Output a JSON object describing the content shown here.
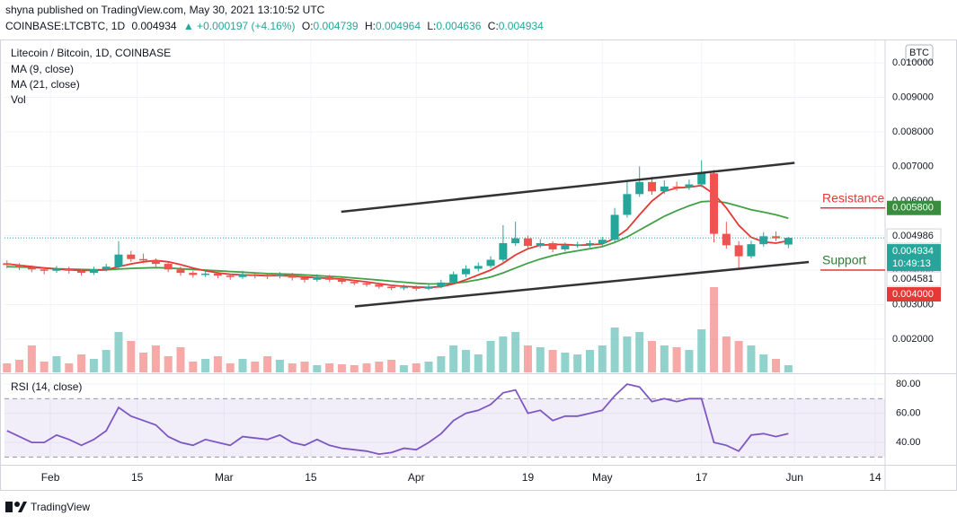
{
  "header": {
    "publisher": "shyna published on TradingView.com, May 30, 2021 13:10:52 UTC",
    "symbol": "COINBASE:LTCBTC, 1D",
    "last": "0.004934",
    "change": "▲ +0.000197 (+4.16%)",
    "o_key": "O:",
    "o": "0.004739",
    "h_key": "H:",
    "h": "0.004964",
    "l_key": "L:",
    "l": "0.004636",
    "c_key": "C:",
    "c": "0.004934",
    "legend_title": "Litecoin / Bitcoin, 1D, COINBASE",
    "ma9": "MA (9, close)",
    "ma21": "MA (21, close)",
    "vol": "Vol",
    "rsi": "RSI (14, close)",
    "currency": "BTC",
    "clock": "10:49:13",
    "brand": "TradingView"
  },
  "chart_data": {
    "type": "candlestick",
    "x": [
      0,
      2,
      4,
      6,
      8,
      10,
      12,
      14,
      16,
      18,
      20,
      22,
      24,
      26,
      28,
      30,
      32,
      34,
      36,
      38,
      40,
      42,
      44,
      46,
      48,
      50,
      52,
      54,
      56,
      58,
      60,
      62,
      64,
      66,
      68,
      70,
      72,
      74,
      76,
      78,
      80,
      82,
      84,
      86,
      88,
      90,
      92,
      94,
      96,
      98,
      100,
      102,
      104,
      106,
      108,
      110,
      112,
      114,
      116,
      118,
      120,
      122,
      124,
      126
    ],
    "ohlc": [
      [
        0.0042,
        0.00428,
        0.00405,
        0.00415
      ],
      [
        0.00415,
        0.0042,
        0.004,
        0.00408
      ],
      [
        0.00408,
        0.00414,
        0.00394,
        0.00402
      ],
      [
        0.00402,
        0.00408,
        0.00388,
        0.00398
      ],
      [
        0.00398,
        0.00412,
        0.00392,
        0.00404
      ],
      [
        0.00404,
        0.0041,
        0.0039,
        0.00398
      ],
      [
        0.00398,
        0.00404,
        0.00384,
        0.00392
      ],
      [
        0.00392,
        0.0041,
        0.00386,
        0.00402
      ],
      [
        0.00402,
        0.00418,
        0.00396,
        0.0041
      ],
      [
        0.0041,
        0.00484,
        0.00404,
        0.00445
      ],
      [
        0.00445,
        0.00456,
        0.00424,
        0.00432
      ],
      [
        0.00432,
        0.00448,
        0.0042,
        0.00428
      ],
      [
        0.00428,
        0.00434,
        0.0041,
        0.00418
      ],
      [
        0.00418,
        0.00424,
        0.00394,
        0.00402
      ],
      [
        0.00402,
        0.0041,
        0.00384,
        0.00392
      ],
      [
        0.00392,
        0.00398,
        0.00378,
        0.00386
      ],
      [
        0.00386,
        0.00398,
        0.0038,
        0.0039
      ],
      [
        0.0039,
        0.00396,
        0.00376,
        0.00384
      ],
      [
        0.00384,
        0.0039,
        0.00372,
        0.0038
      ],
      [
        0.0038,
        0.00398,
        0.00374,
        0.00388
      ],
      [
        0.00388,
        0.00394,
        0.00376,
        0.00384
      ],
      [
        0.00384,
        0.0039,
        0.00374,
        0.00382
      ],
      [
        0.00382,
        0.00394,
        0.00376,
        0.00386
      ],
      [
        0.00386,
        0.00392,
        0.0037,
        0.00378
      ],
      [
        0.00378,
        0.00384,
        0.00364,
        0.00372
      ],
      [
        0.00372,
        0.00388,
        0.00366,
        0.0038
      ],
      [
        0.0038,
        0.00386,
        0.00366,
        0.00372
      ],
      [
        0.00372,
        0.00378,
        0.0036,
        0.00366
      ],
      [
        0.00366,
        0.00372,
        0.00356,
        0.00362
      ],
      [
        0.00362,
        0.00368,
        0.00352,
        0.00358
      ],
      [
        0.00358,
        0.00364,
        0.00346,
        0.00352
      ],
      [
        0.00352,
        0.00358,
        0.00342,
        0.00348
      ],
      [
        0.00348,
        0.00358,
        0.00342,
        0.0035
      ],
      [
        0.0035,
        0.00356,
        0.0034,
        0.00346
      ],
      [
        0.00346,
        0.0036,
        0.00342,
        0.00352
      ],
      [
        0.00352,
        0.00372,
        0.00348,
        0.00364
      ],
      [
        0.00364,
        0.00396,
        0.0036,
        0.00388
      ],
      [
        0.00388,
        0.00414,
        0.0038,
        0.00404
      ],
      [
        0.00404,
        0.00422,
        0.00396,
        0.00412
      ],
      [
        0.00412,
        0.0044,
        0.00406,
        0.0043
      ],
      [
        0.0043,
        0.0053,
        0.00424,
        0.00478
      ],
      [
        0.00478,
        0.0054,
        0.0047,
        0.00492
      ],
      [
        0.00492,
        0.005,
        0.00462,
        0.0047
      ],
      [
        0.0047,
        0.0049,
        0.00464,
        0.00478
      ],
      [
        0.00478,
        0.00484,
        0.00452,
        0.0046
      ],
      [
        0.0046,
        0.0048,
        0.00454,
        0.00472
      ],
      [
        0.00472,
        0.00482,
        0.00464,
        0.00474
      ],
      [
        0.00474,
        0.00486,
        0.00466,
        0.00478
      ],
      [
        0.00478,
        0.00496,
        0.0047,
        0.00488
      ],
      [
        0.00488,
        0.0058,
        0.00482,
        0.0056
      ],
      [
        0.0056,
        0.0066,
        0.00552,
        0.0062
      ],
      [
        0.0062,
        0.007,
        0.00612,
        0.00655
      ],
      [
        0.00655,
        0.0067,
        0.00618,
        0.00628
      ],
      [
        0.00628,
        0.0066,
        0.0062,
        0.00642
      ],
      [
        0.00642,
        0.00656,
        0.0063,
        0.0064
      ],
      [
        0.0064,
        0.00662,
        0.00632,
        0.00648
      ],
      [
        0.00648,
        0.00718,
        0.0064,
        0.0068
      ],
      [
        0.0068,
        0.0069,
        0.0048,
        0.00505
      ],
      [
        0.00505,
        0.0054,
        0.00462,
        0.00472
      ],
      [
        0.00472,
        0.00484,
        0.004,
        0.0044
      ],
      [
        0.0044,
        0.00485,
        0.00434,
        0.00475
      ],
      [
        0.00475,
        0.0051,
        0.00468,
        0.00498
      ],
      [
        0.00498,
        0.00512,
        0.00484,
        0.00492
      ],
      [
        0.004739,
        0.004964,
        0.004636,
        0.004934
      ]
    ],
    "ma9": [
      0.00418,
      0.00414,
      0.0041,
      0.00406,
      0.00403,
      0.00401,
      0.00399,
      0.00399,
      0.00401,
      0.0041,
      0.00418,
      0.00424,
      0.00428,
      0.00424,
      0.00416,
      0.00406,
      0.00398,
      0.00392,
      0.00388,
      0.00386,
      0.00385,
      0.00384,
      0.00384,
      0.00383,
      0.0038,
      0.00378,
      0.00376,
      0.00374,
      0.0037,
      0.00366,
      0.00361,
      0.00356,
      0.00353,
      0.00351,
      0.0035,
      0.00352,
      0.0036,
      0.00372,
      0.00386,
      0.004,
      0.0042,
      0.00444,
      0.00462,
      0.00472,
      0.00474,
      0.00474,
      0.00472,
      0.00473,
      0.00476,
      0.00492,
      0.00518,
      0.0056,
      0.006,
      0.00628,
      0.00638,
      0.0064,
      0.00645,
      0.0062,
      0.0058,
      0.0053,
      0.00495,
      0.00482,
      0.00478,
      0.00485
    ],
    "ma21": [
      0.0041,
      0.00409,
      0.00408,
      0.00406,
      0.00404,
      0.00403,
      0.00402,
      0.00401,
      0.00401,
      0.00403,
      0.00405,
      0.00406,
      0.00407,
      0.00406,
      0.00404,
      0.00402,
      0.004,
      0.00398,
      0.00396,
      0.00394,
      0.00392,
      0.0039,
      0.00389,
      0.00388,
      0.00386,
      0.00384,
      0.00382,
      0.0038,
      0.00377,
      0.00374,
      0.00371,
      0.00368,
      0.00365,
      0.00362,
      0.0036,
      0.0036,
      0.00362,
      0.00366,
      0.00372,
      0.0038,
      0.00392,
      0.00406,
      0.0042,
      0.00432,
      0.00442,
      0.0045,
      0.00456,
      0.00462,
      0.00468,
      0.0048,
      0.00496,
      0.00516,
      0.00536,
      0.00556,
      0.00572,
      0.00586,
      0.00598,
      0.006,
      0.00595,
      0.00585,
      0.00575,
      0.00568,
      0.0056,
      0.0055
    ],
    "ma9_color": "#e53935",
    "ma21_color": "#43a047",
    "up_color": "#26a69a",
    "down_color": "#ef5350",
    "volume": [
      10,
      14,
      30,
      12,
      18,
      10,
      20,
      15,
      25,
      45,
      35,
      22,
      30,
      18,
      28,
      12,
      15,
      18,
      10,
      15,
      12,
      18,
      14,
      10,
      12,
      8,
      10,
      9,
      8,
      10,
      12,
      14,
      8,
      10,
      12,
      18,
      30,
      25,
      20,
      35,
      40,
      45,
      30,
      28,
      25,
      22,
      20,
      25,
      30,
      50,
      40,
      45,
      35,
      30,
      28,
      25,
      48,
      95,
      40,
      35,
      30,
      20,
      15,
      8
    ],
    "vol_lim": [
      0,
      100
    ],
    "rsi": [
      48,
      44,
      40,
      40,
      45,
      42,
      38,
      42,
      48,
      64,
      58,
      55,
      52,
      44,
      40,
      38,
      42,
      40,
      38,
      44,
      43,
      42,
      45,
      40,
      38,
      42,
      38,
      36,
      35,
      34,
      32,
      33,
      36,
      35,
      40,
      46,
      55,
      60,
      62,
      66,
      74,
      76,
      60,
      62,
      55,
      58,
      58,
      60,
      62,
      72,
      80,
      78,
      68,
      70,
      68,
      70,
      70,
      40,
      38,
      34,
      45,
      46,
      44,
      46
    ],
    "rsi_color": "#7e57c2",
    "rsi_band": [
      30,
      70
    ],
    "xlim": [
      -0.4,
      141.6
    ],
    "xticks": [
      {
        "value": 7,
        "label": "Feb"
      },
      {
        "value": 21,
        "label": "15"
      },
      {
        "value": 35,
        "label": "Mar"
      },
      {
        "value": 49,
        "label": "15"
      },
      {
        "value": 66,
        "label": "Apr"
      },
      {
        "value": 84,
        "label": "19"
      },
      {
        "value": 96,
        "label": "May"
      },
      {
        "value": 112,
        "label": "17"
      },
      {
        "value": 127,
        "label": "Jun"
      },
      {
        "value": 140,
        "label": "14"
      }
    ],
    "ylim": [
      0.00104,
      0.01065
    ],
    "yticks": [
      {
        "value": 0.002,
        "label": "0.002000"
      },
      {
        "value": 0.003,
        "label": "0.003000"
      },
      {
        "value": 0.004,
        "label": "0.004000"
      },
      {
        "value": 0.005,
        "label": "0.005000"
      },
      {
        "value": 0.006,
        "label": "0.006000"
      },
      {
        "value": 0.007,
        "label": "0.007000"
      },
      {
        "value": 0.008,
        "label": "0.008000"
      },
      {
        "value": 0.009,
        "label": "0.009000"
      },
      {
        "value": 0.01,
        "label": "0.010000"
      }
    ],
    "rsi_lim": [
      26.5,
      86.2
    ],
    "rsi_ticks": [
      {
        "value": 40,
        "label": "40.00"
      },
      {
        "value": 60,
        "label": "60.00"
      },
      {
        "value": 80,
        "label": "80.00"
      }
    ],
    "price_labels": [
      {
        "value": 0.0058,
        "label": "0.005800",
        "color": "#388e3c"
      },
      {
        "value": 0.004986,
        "label": "0.004986",
        "color": "#ffffff"
      },
      {
        "value": 0.004934,
        "label": "0.004934",
        "color": "#26a69a"
      },
      {
        "value": 0.004581,
        "label": "0.004581",
        "color": "#ffffff"
      },
      {
        "value": 0.004,
        "label": "0.004000",
        "color": "#e53935"
      }
    ],
    "current_price": 0.004934,
    "trend_lines": [
      {
        "x": [
          53.9,
          127
        ],
        "y": [
          0.005688,
          0.007104
        ]
      },
      {
        "x": [
          56.1,
          129.3
        ],
        "y": [
          0.002948,
          0.004234
        ]
      }
    ],
    "annotations": [
      {
        "text": "Resistance",
        "value": 0.0058,
        "color": "#e53935"
      },
      {
        "text": "Support",
        "value": 0.004,
        "color": "#2e7d32"
      }
    ],
    "grid": true
  }
}
